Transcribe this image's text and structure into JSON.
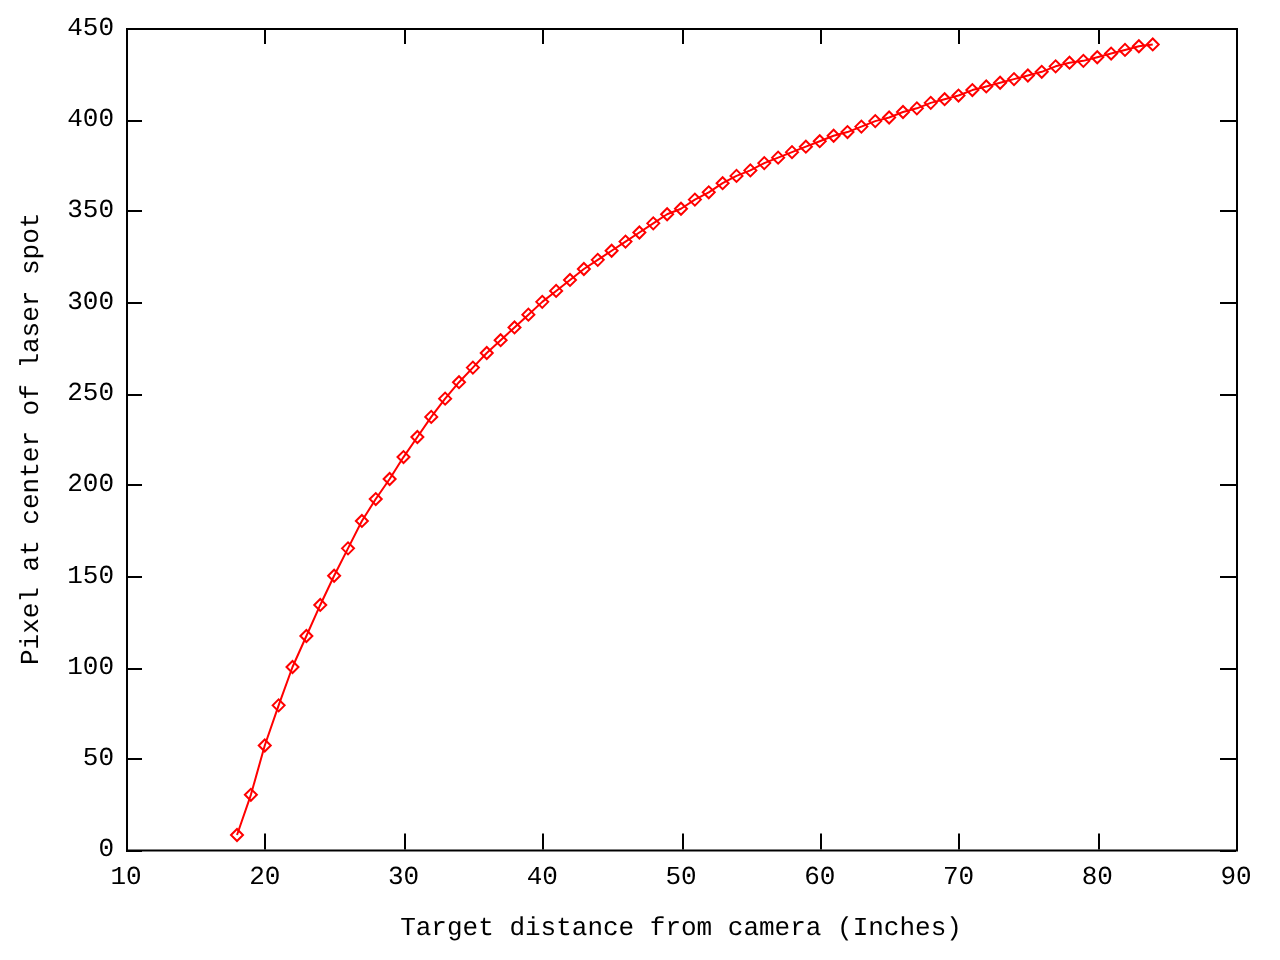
{
  "chart_data": {
    "type": "line",
    "xlabel": "Target distance from camera (Inches)",
    "ylabel": "Pixel at center of laser spot",
    "xlim": [
      10,
      90
    ],
    "xticks": [
      10,
      20,
      30,
      40,
      50,
      60,
      70,
      80,
      90
    ],
    "ylim": [
      0,
      450
    ],
    "yticks": [
      0,
      50,
      100,
      150,
      200,
      250,
      300,
      350,
      400,
      450
    ],
    "grid": false,
    "legend": false,
    "marker": "diamond",
    "line_style": "solid",
    "series": [
      {
        "color": "#ff0000",
        "x": [
          18,
          19,
          20,
          21,
          22,
          23,
          24,
          25,
          26,
          27,
          28,
          29,
          30,
          31,
          32,
          33,
          34,
          35,
          36,
          37,
          38,
          39,
          40,
          41,
          42,
          43,
          44,
          45,
          46,
          47,
          48,
          49,
          50,
          51,
          52,
          53,
          54,
          55,
          56,
          57,
          58,
          59,
          60,
          61,
          62,
          63,
          64,
          65,
          66,
          67,
          68,
          69,
          70,
          71,
          72,
          73,
          74,
          75,
          76,
          77,
          78,
          79,
          80,
          81,
          82,
          83,
          84
        ],
        "values": [
          8,
          30,
          57,
          79,
          100,
          117,
          134,
          150,
          165,
          180,
          192,
          203,
          215,
          226,
          237,
          247,
          256,
          264,
          272,
          279,
          286,
          293,
          300,
          306,
          312,
          318,
          323,
          328,
          333,
          338,
          343,
          348,
          351,
          356,
          360,
          365,
          369,
          372,
          376,
          379,
          382,
          385,
          388,
          391,
          393,
          396,
          399,
          401,
          404,
          406,
          409,
          411,
          413,
          416,
          418,
          420,
          422,
          424,
          426,
          429,
          431,
          432,
          434,
          436,
          438,
          440,
          441
        ]
      }
    ]
  }
}
